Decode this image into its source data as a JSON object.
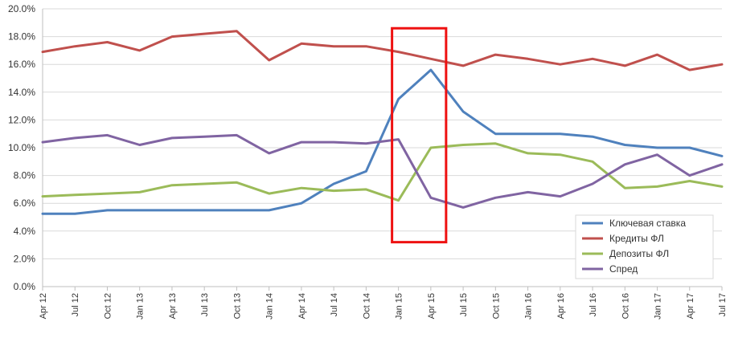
{
  "chart_data": {
    "type": "line",
    "categories": [
      "Apr 12",
      "Jul 12",
      "Oct 12",
      "Jan 13",
      "Apr 13",
      "Jul 13",
      "Oct 13",
      "Jan 14",
      "Apr 14",
      "Jul 14",
      "Oct 14",
      "Jan 15",
      "Apr 15",
      "Jul 15",
      "Oct 15",
      "Jan 16",
      "Apr 16",
      "Jul 16",
      "Oct 16",
      "Jan 17",
      "Apr 17",
      "Jul 17"
    ],
    "series": [
      {
        "name": "Ключевая ставка",
        "color": "#4f81bd",
        "values": [
          5.25,
          5.25,
          5.5,
          5.5,
          5.5,
          5.5,
          5.5,
          5.5,
          6.0,
          7.4,
          8.3,
          13.5,
          15.6,
          12.6,
          11.0,
          11.0,
          11.0,
          10.8,
          10.2,
          10.0,
          10.0,
          9.4
        ]
      },
      {
        "name": "Кредиты ФЛ",
        "color": "#c0504d",
        "values": [
          16.9,
          17.3,
          17.6,
          17.0,
          18.0,
          18.2,
          18.4,
          16.3,
          17.5,
          17.3,
          17.3,
          16.9,
          16.4,
          15.9,
          16.7,
          16.4,
          16.0,
          16.4,
          15.9,
          16.7,
          15.6,
          16.0
        ]
      },
      {
        "name": "Депозиты ФЛ",
        "color": "#9bbb59",
        "values": [
          6.5,
          6.6,
          6.7,
          6.8,
          7.3,
          7.4,
          7.5,
          6.7,
          7.1,
          6.9,
          7.0,
          6.2,
          10.0,
          10.2,
          10.3,
          9.6,
          9.5,
          9.0,
          7.1,
          7.2,
          7.6,
          7.2
        ]
      },
      {
        "name": "Спред",
        "color": "#8064a2",
        "values": [
          10.4,
          10.7,
          10.9,
          10.2,
          10.7,
          10.8,
          10.9,
          9.6,
          10.4,
          10.4,
          10.3,
          10.6,
          6.4,
          5.7,
          6.4,
          6.8,
          6.5,
          7.4,
          8.8,
          9.5,
          8.0,
          8.8
        ]
      }
    ],
    "yticks": [
      "0.0%",
      "2.0%",
      "4.0%",
      "6.0%",
      "8.0%",
      "10.0%",
      "12.0%",
      "14.0%",
      "16.0%",
      "18.0%",
      "20.0%"
    ],
    "ylim": [
      0,
      20
    ],
    "grid": "horizontal",
    "legend_position": "bottom-right",
    "highlight": {
      "x_from": "Jan 15",
      "x_to": "Apr 15",
      "y_from": 3.2,
      "y_to": 18.6,
      "color": "#ee1111"
    }
  }
}
